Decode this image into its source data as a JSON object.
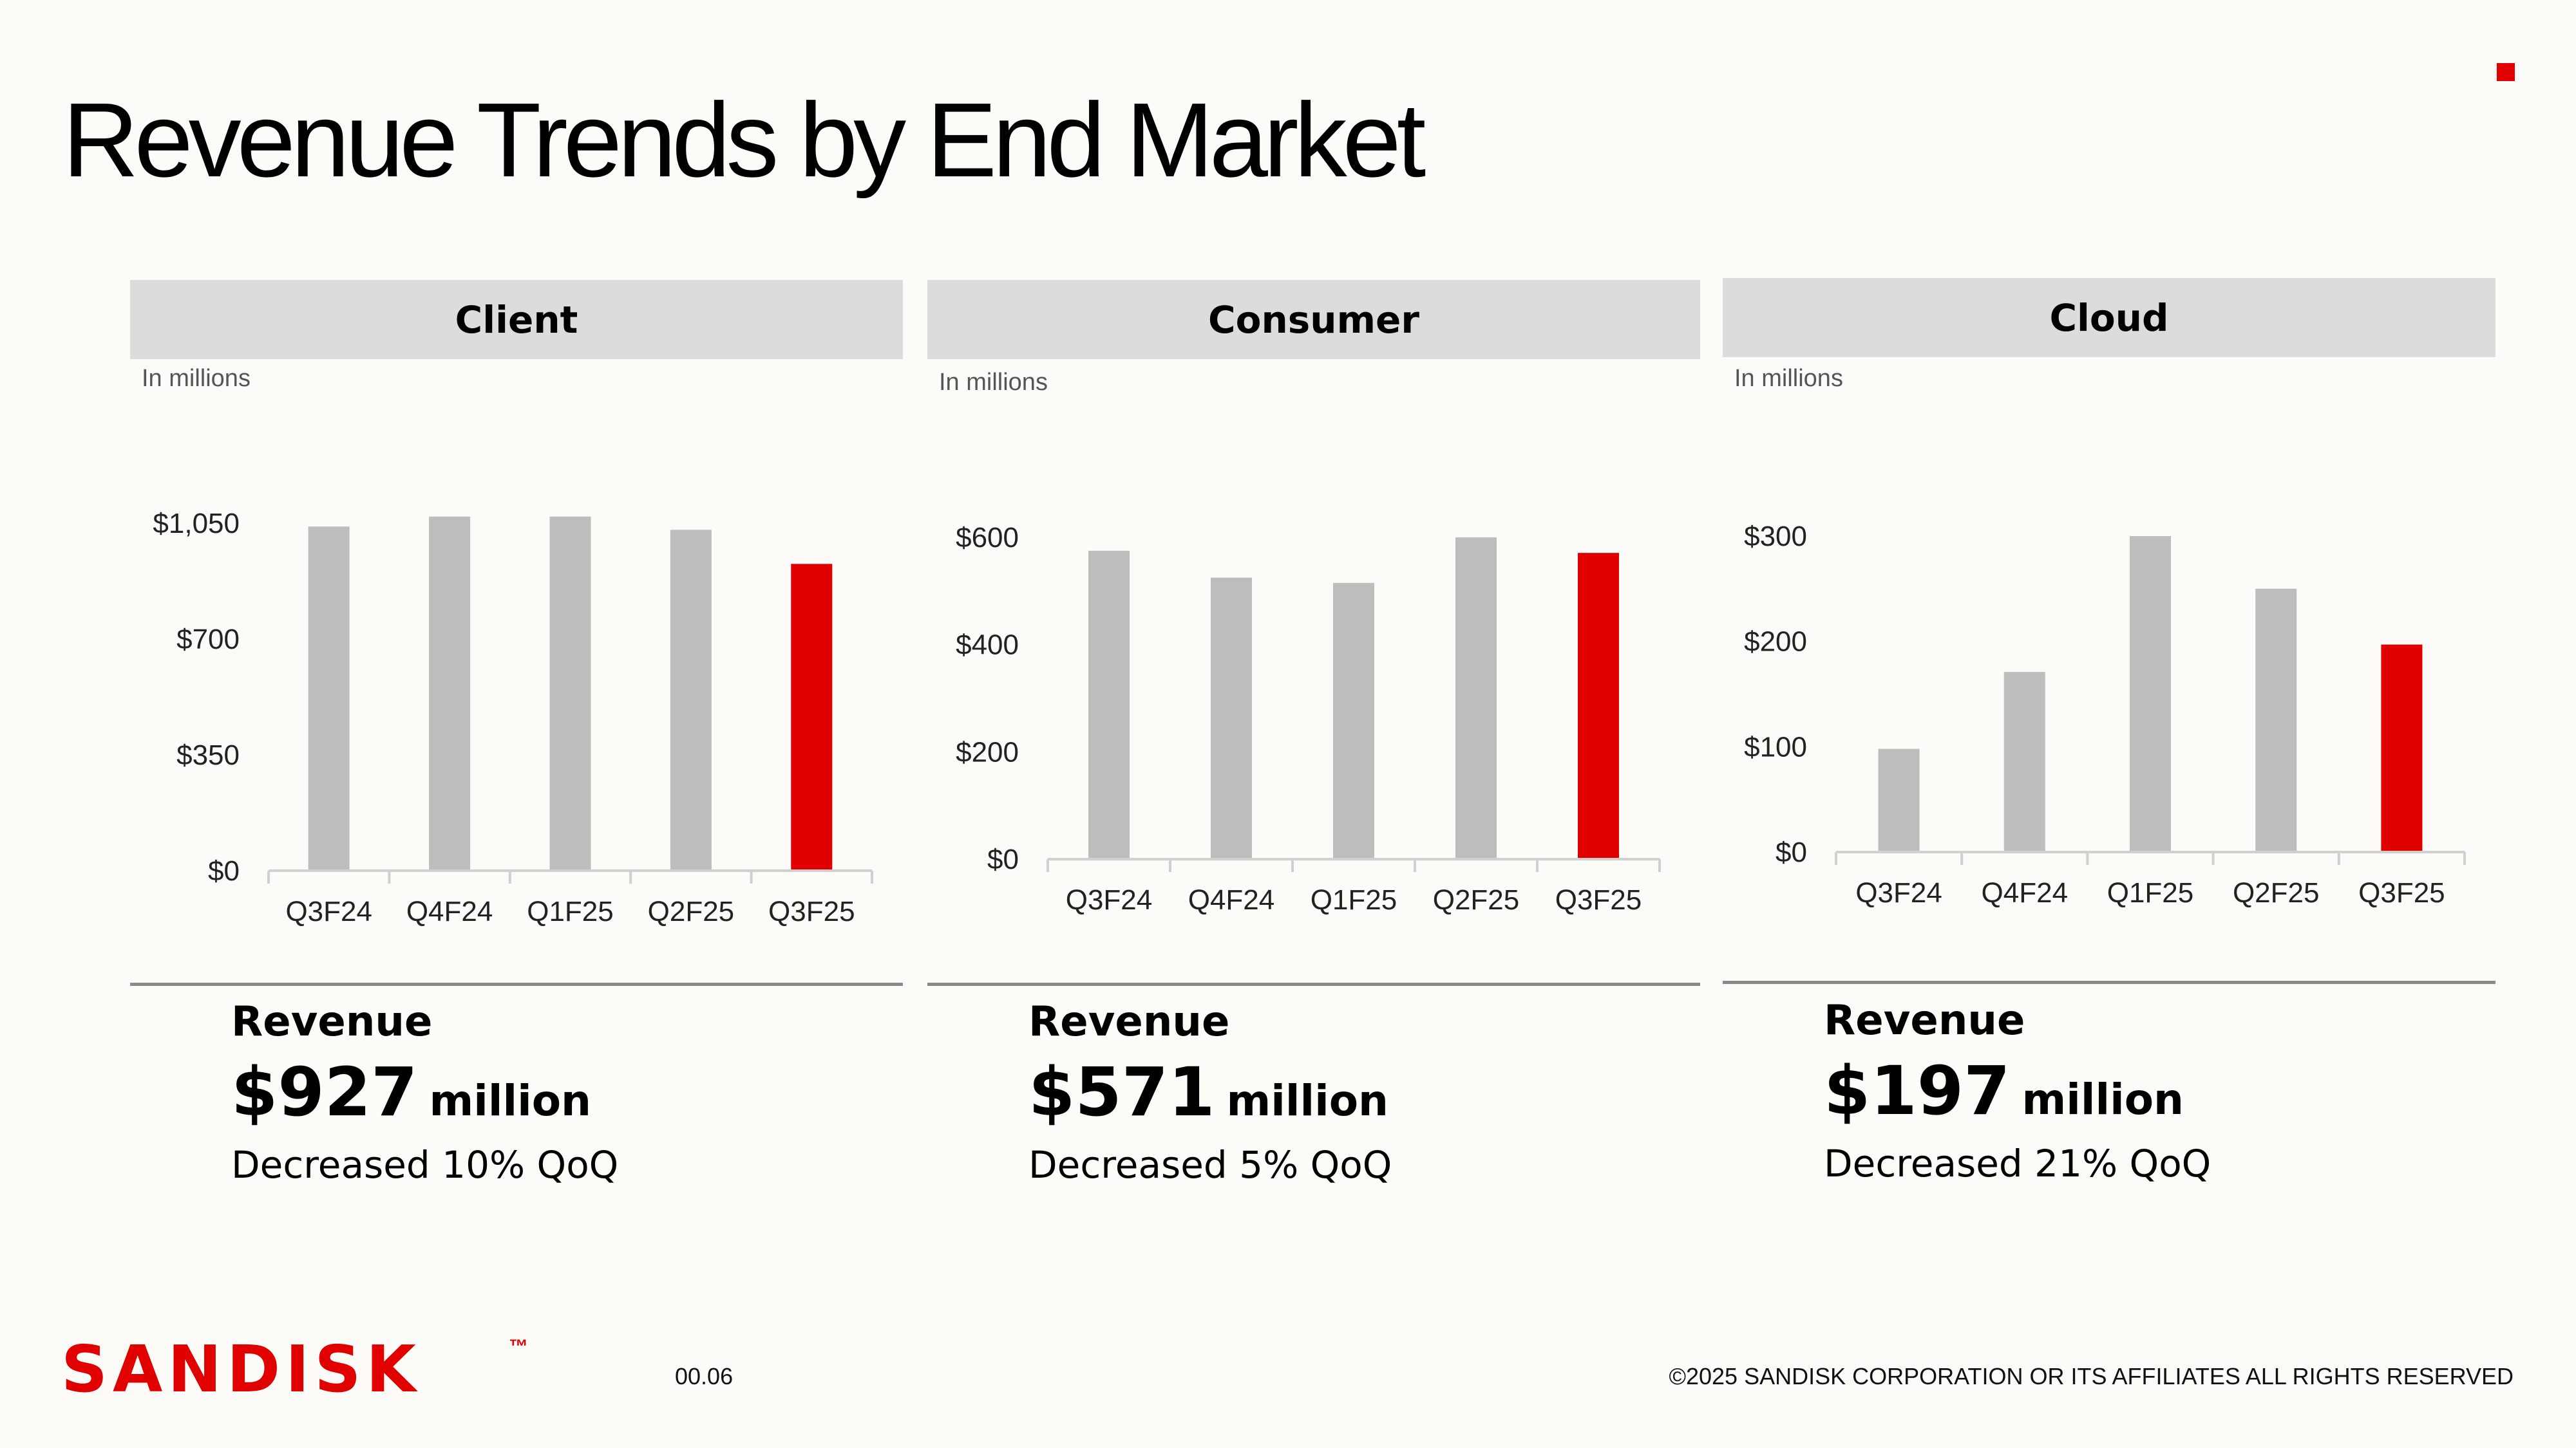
{
  "title": "Revenue Trends by End Market",
  "colors": {
    "accent": "#e00000",
    "bar": "#bdbdbd",
    "header": "#dcdcdc",
    "background": "#fdfbf8"
  },
  "panels": [
    {
      "header": "Client",
      "units": "In millions",
      "revenue_label": "Revenue",
      "revenue_value": "$927",
      "revenue_unit": "million",
      "change": "Decreased 10% QoQ"
    },
    {
      "header": "Consumer",
      "units": "In millions",
      "revenue_label": "Revenue",
      "revenue_value": "$571",
      "revenue_unit": "million",
      "change": "Decreased 5% QoQ"
    },
    {
      "header": "Cloud",
      "units": "In millions",
      "revenue_label": "Revenue",
      "revenue_value": "$197",
      "revenue_unit": "million",
      "change": "Decreased 21% QoQ"
    }
  ],
  "chart_data": [
    {
      "type": "bar",
      "title": "Client",
      "categories": [
        "Q3F24",
        "Q4F24",
        "Q1F25",
        "Q2F25",
        "Q3F25"
      ],
      "values": [
        1040,
        1070,
        1070,
        1030,
        927
      ],
      "highlight_index": 4,
      "yticks": [
        0,
        350,
        700,
        1050
      ],
      "ytick_labels": [
        "$0",
        "$350",
        "$700",
        "$1,050"
      ],
      "ylim": [
        0,
        1050
      ]
    },
    {
      "type": "bar",
      "title": "Consumer",
      "categories": [
        "Q3F24",
        "Q4F24",
        "Q1F25",
        "Q2F25",
        "Q3F25"
      ],
      "values": [
        575,
        525,
        515,
        600,
        571
      ],
      "highlight_index": 4,
      "yticks": [
        0,
        200,
        400,
        600
      ],
      "ytick_labels": [
        "$0",
        "$200",
        "$400",
        "$600"
      ],
      "ylim": [
        0,
        600
      ]
    },
    {
      "type": "bar",
      "title": "Cloud",
      "categories": [
        "Q3F24",
        "Q4F24",
        "Q1F25",
        "Q2F25",
        "Q3F25"
      ],
      "values": [
        98,
        171,
        300,
        250,
        197
      ],
      "highlight_index": 4,
      "yticks": [
        0,
        100,
        200,
        300
      ],
      "ytick_labels": [
        "$0",
        "$100",
        "$200",
        "$300"
      ],
      "ylim": [
        0,
        300
      ]
    }
  ],
  "footer": {
    "logo": "SANDISK",
    "trademark": "™",
    "page_number": "00.06",
    "copyright": "©2025 SANDISK CORPORATION OR ITS AFFILIATES ALL RIGHTS RESERVED"
  }
}
